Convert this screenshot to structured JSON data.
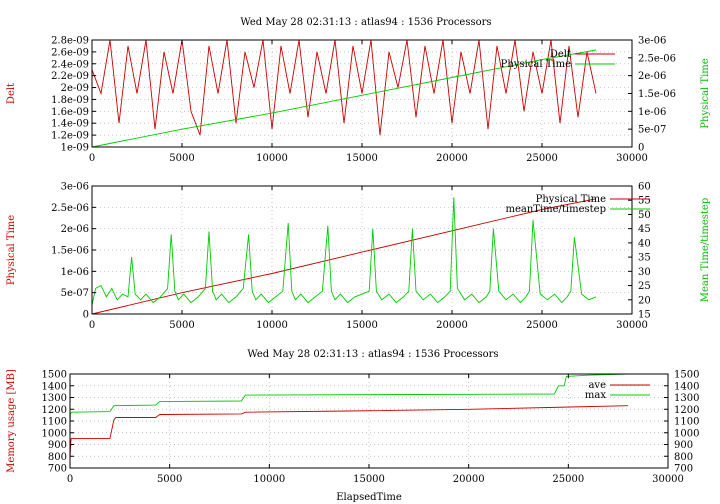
{
  "chart_data": [
    {
      "type": "line",
      "title": "Wed May 28 02:31:13 : atlas94 : 1536 Processors",
      "xlabel": "",
      "ylabel": "Delt",
      "y2label": "Physical Time",
      "xlim": [
        0,
        30000
      ],
      "ylim": [
        1e-09,
        2.8e-09
      ],
      "y2lim": [
        0,
        3e-06
      ],
      "xticks": [
        0,
        5000,
        10000,
        15000,
        20000,
        25000,
        30000
      ],
      "xtick_labels": [
        "0",
        "5000",
        "10000",
        "15000",
        "20000",
        "25000",
        "30000"
      ],
      "yticks": [
        1e-09,
        1.2e-09,
        1.4e-09,
        1.6e-09,
        1.8e-09,
        2e-09,
        2.2e-09,
        2.4e-09,
        2.6e-09,
        2.8e-09
      ],
      "ytick_labels": [
        "1e-09",
        "1.2e-09",
        "1.4e-09",
        "1.6e-09",
        "1.8e-09",
        "2e-09",
        "2.2e-09",
        "2.4e-09",
        "2.6e-09",
        "2.8e-09"
      ],
      "y2ticks": [
        0,
        5e-07,
        1e-06,
        1.5e-06,
        2e-06,
        2.5e-06,
        3e-06
      ],
      "y2tick_labels": [
        "0",
        "5e-07",
        "1e-06",
        "1.5e-06",
        "2e-06",
        "2.5e-06",
        "3e-06"
      ],
      "grid": true,
      "legend": "top-right",
      "series": [
        {
          "name": "Delt",
          "axis": "left",
          "color": "#cc0000",
          "x": [
            0,
            500,
            1000,
            1500,
            2000,
            2500,
            3000,
            3500,
            4000,
            4500,
            5000,
            5500,
            6000,
            6500,
            7000,
            7500,
            8000,
            8500,
            9000,
            9500,
            10000,
            10500,
            11000,
            11500,
            12000,
            12500,
            13000,
            13500,
            14000,
            14500,
            15000,
            15500,
            16000,
            16500,
            17000,
            17500,
            18000,
            18500,
            19000,
            19500,
            20000,
            20500,
            21000,
            21500,
            22000,
            22500,
            23000,
            23500,
            24000,
            24500,
            25000,
            25500,
            26000,
            26500,
            27000,
            27500,
            28000
          ],
          "y": [
            2.3e-09,
            1.9e-09,
            2.8e-09,
            1.4e-09,
            2.7e-09,
            1.9e-09,
            2.8e-09,
            1.3e-09,
            2.6e-09,
            1.9e-09,
            2.8e-09,
            1.6e-09,
            1.2e-09,
            2.7e-09,
            1.9e-09,
            2.8e-09,
            1.4e-09,
            2.6e-09,
            2e-09,
            2.8e-09,
            1.3e-09,
            2.7e-09,
            1.9e-09,
            2.8e-09,
            1.5e-09,
            2.6e-09,
            1.9e-09,
            2.8e-09,
            1.4e-09,
            2.7e-09,
            1.9e-09,
            2.8e-09,
            1.2e-09,
            2.6e-09,
            2e-09,
            2.8e-09,
            1.5e-09,
            2.7e-09,
            1.9e-09,
            2.8e-09,
            1.4e-09,
            2.6e-09,
            1.9e-09,
            2.8e-09,
            1.3e-09,
            2.7e-09,
            1.9e-09,
            2.8e-09,
            1.6e-09,
            2.6e-09,
            1.9e-09,
            2.8e-09,
            1.4e-09,
            2.7e-09,
            1.5e-09,
            2.6e-09,
            1.9e-09
          ]
        },
        {
          "name": "Physical Time",
          "axis": "right",
          "color": "#00cc00",
          "x": [
            0,
            5000,
            10000,
            15000,
            20000,
            25000,
            28000
          ],
          "y": [
            0,
            5e-07,
            9.5e-07,
            1.45e-06,
            1.95e-06,
            2.45e-06,
            2.72e-06
          ]
        }
      ]
    },
    {
      "type": "line",
      "title": "",
      "xlabel": "",
      "ylabel": "Physical Time",
      "y2label": "Mean Time/timestep",
      "xlim": [
        0,
        30000
      ],
      "ylim": [
        0,
        3e-06
      ],
      "y2lim": [
        15,
        60
      ],
      "xticks": [
        0,
        5000,
        10000,
        15000,
        20000,
        25000,
        30000
      ],
      "xtick_labels": [
        "0",
        "5000",
        "10000",
        "15000",
        "20000",
        "25000",
        "30000"
      ],
      "yticks": [
        0,
        5e-07,
        1e-06,
        1.5e-06,
        2e-06,
        2.5e-06,
        3e-06
      ],
      "ytick_labels": [
        "0",
        "5e-07",
        "1e-06",
        "1.5e-06",
        "2e-06",
        "2.5e-06",
        "3e-06"
      ],
      "y2ticks": [
        15,
        20,
        25,
        30,
        35,
        40,
        45,
        50,
        55,
        60
      ],
      "y2tick_labels": [
        "15",
        "20",
        "25",
        "30",
        "35",
        "40",
        "45",
        "50",
        "55",
        "60"
      ],
      "grid": true,
      "legend": "top-right",
      "series": [
        {
          "name": "Physical Time",
          "axis": "left",
          "color": "#cc0000",
          "x": [
            0,
            5000,
            10000,
            15000,
            20000,
            25000,
            28000
          ],
          "y": [
            0,
            5e-07,
            9.5e-07,
            1.45e-06,
            1.95e-06,
            2.45e-06,
            2.7e-06
          ]
        },
        {
          "name": "meanTime/timestep",
          "axis": "right",
          "color": "#00cc00",
          "x": [
            0,
            200,
            500,
            800,
            1100,
            1400,
            1700,
            2000,
            2200,
            2400,
            2700,
            3000,
            3400,
            3800,
            4200,
            4400,
            4600,
            4800,
            5100,
            5500,
            5900,
            6300,
            6500,
            6700,
            6900,
            7200,
            7600,
            8000,
            8400,
            8700,
            8900,
            9100,
            9400,
            9800,
            10200,
            10600,
            10900,
            11100,
            11300,
            11600,
            12000,
            12400,
            12800,
            13100,
            13300,
            13500,
            13800,
            14200,
            14600,
            15000,
            15400,
            15600,
            15800,
            16100,
            16500,
            16900,
            17300,
            17600,
            17800,
            18000,
            18400,
            18800,
            19200,
            19600,
            19900,
            20100,
            20300,
            20700,
            21100,
            21500,
            21900,
            22100,
            22300,
            22600,
            23000,
            23400,
            23800,
            24100,
            24300,
            24500,
            24900,
            25300,
            25700,
            26100,
            26400,
            26600,
            26800,
            27200,
            27600,
            28000
          ],
          "y": [
            18,
            24,
            25,
            21,
            24,
            20,
            22,
            21,
            35,
            22,
            20,
            22,
            19,
            21,
            24,
            43,
            23,
            20,
            22,
            19,
            21,
            24,
            44,
            23,
            20,
            22,
            19,
            21,
            24,
            43,
            23,
            20,
            22,
            19,
            21,
            23,
            47,
            23,
            20,
            22,
            19,
            21,
            23,
            46,
            23,
            20,
            22,
            19,
            21,
            22,
            23,
            45,
            23,
            20,
            22,
            19,
            21,
            23,
            45,
            23,
            20,
            22,
            19,
            21,
            23,
            56,
            24,
            20,
            22,
            19,
            21,
            23,
            45,
            23,
            20,
            22,
            19,
            21,
            23,
            48,
            22,
            20,
            22,
            19,
            21,
            23,
            42,
            22,
            20,
            21
          ]
        }
      ]
    },
    {
      "type": "line",
      "title": "Wed May 28 02:31:13 : atlas94 : 1536 Processors",
      "xlabel": "ElapsedTime",
      "ylabel": "Memory usage [MB]",
      "y2label": "",
      "xlim": [
        0,
        30000
      ],
      "ylim": [
        700,
        1500
      ],
      "y2lim": [
        700,
        1500
      ],
      "xticks": [
        0,
        5000,
        10000,
        15000,
        20000,
        25000,
        30000
      ],
      "xtick_labels": [
        "0",
        "5000",
        "10000",
        "15000",
        "20000",
        "25000",
        "30000"
      ],
      "yticks": [
        700,
        800,
        900,
        1000,
        1100,
        1200,
        1300,
        1400,
        1500
      ],
      "ytick_labels": [
        "700",
        "800",
        "900",
        "1000",
        "1100",
        "1200",
        "1300",
        "1400",
        "1500"
      ],
      "y2ticks": [
        700,
        800,
        900,
        1000,
        1100,
        1200,
        1300,
        1400,
        1500
      ],
      "y2tick_labels": [
        "700",
        "800",
        "900",
        "1000",
        "1100",
        "1200",
        "1300",
        "1400",
        "1500"
      ],
      "grid": true,
      "legend": "top-right",
      "series": [
        {
          "name": "ave",
          "axis": "left",
          "color": "#cc0000",
          "x": [
            0,
            20,
            40,
            60,
            100,
            2000,
            2200,
            2300,
            4300,
            4500,
            8600,
            8800,
            14000,
            20000,
            24000,
            28000
          ],
          "y": [
            780,
            850,
            920,
            950,
            950,
            950,
            1110,
            1130,
            1130,
            1155,
            1160,
            1175,
            1185,
            1200,
            1215,
            1230
          ]
        },
        {
          "name": "max",
          "axis": "left",
          "color": "#00cc00",
          "x": [
            0,
            20,
            60,
            100,
            2000,
            2200,
            4300,
            4500,
            8600,
            8800,
            24300,
            24500,
            24800,
            24900,
            26000,
            28000
          ],
          "y": [
            1050,
            1160,
            1170,
            1175,
            1180,
            1230,
            1235,
            1265,
            1270,
            1320,
            1330,
            1400,
            1400,
            1480,
            1490,
            1500
          ]
        }
      ]
    }
  ]
}
